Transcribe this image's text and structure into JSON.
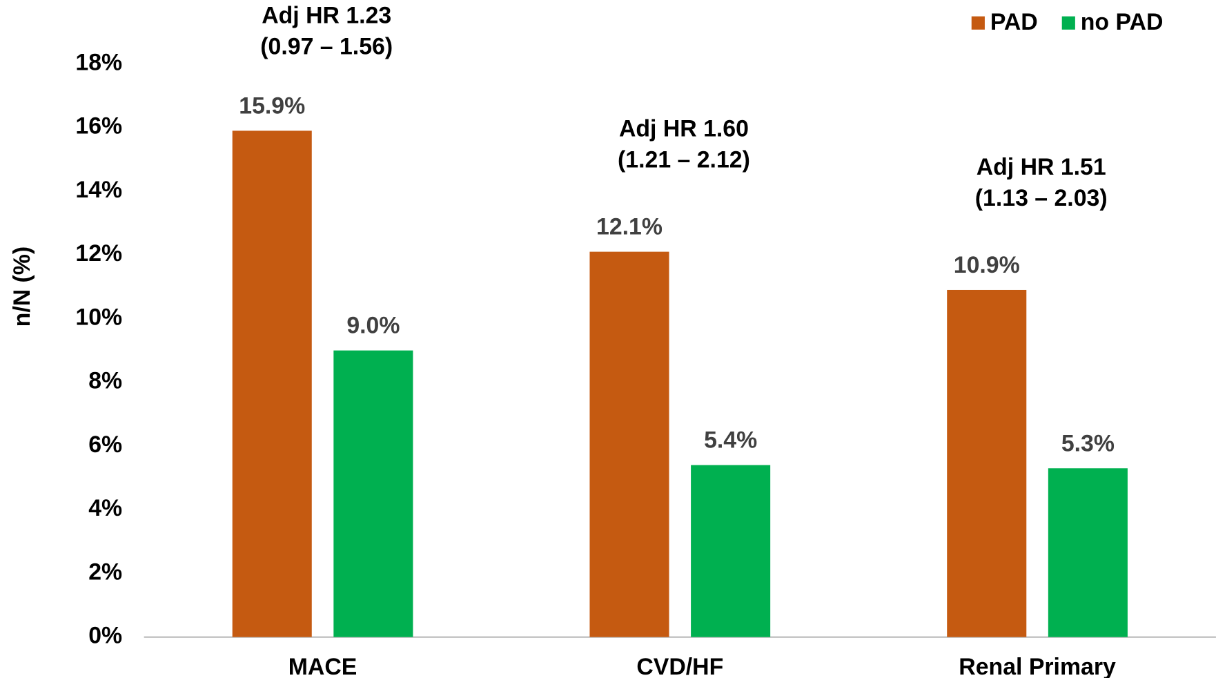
{
  "chart_data": {
    "type": "bar",
    "y_label": "n/N (%)",
    "categories": [
      "MACE",
      "CVD/HF",
      "Renal Primary"
    ],
    "series": [
      {
        "name": "PAD",
        "color": "#c55a11",
        "values": [
          15.9,
          12.1,
          10.9
        ],
        "value_labels": [
          "15.9%",
          "12.1%",
          "10.9%"
        ]
      },
      {
        "name": "no PAD",
        "color": "#00b050",
        "values": [
          9.0,
          5.4,
          5.3
        ],
        "value_labels": [
          "9.0%",
          "5.4%",
          "5.3%"
        ]
      }
    ],
    "annotations": [
      [
        "Adj HR 1.23",
        "(0.97 – 1.56)"
      ],
      [
        "Adj HR 1.60",
        "(1.21 – 2.12)"
      ],
      [
        "Adj HR 1.51",
        "(1.13 – 2.03)"
      ]
    ],
    "ylim": [
      0,
      18
    ],
    "yticks": [
      {
        "value": 0,
        "label": "0%"
      },
      {
        "value": 2,
        "label": "2%"
      },
      {
        "value": 4,
        "label": "4%"
      },
      {
        "value": 6,
        "label": "6%"
      },
      {
        "value": 8,
        "label": "8%"
      },
      {
        "value": 10,
        "label": "10%"
      },
      {
        "value": 12,
        "label": "12%"
      },
      {
        "value": 14,
        "label": "14%"
      },
      {
        "value": 16,
        "label": "16%"
      },
      {
        "value": 18,
        "label": "18%"
      }
    ],
    "grid": false,
    "legend": "top-right"
  }
}
